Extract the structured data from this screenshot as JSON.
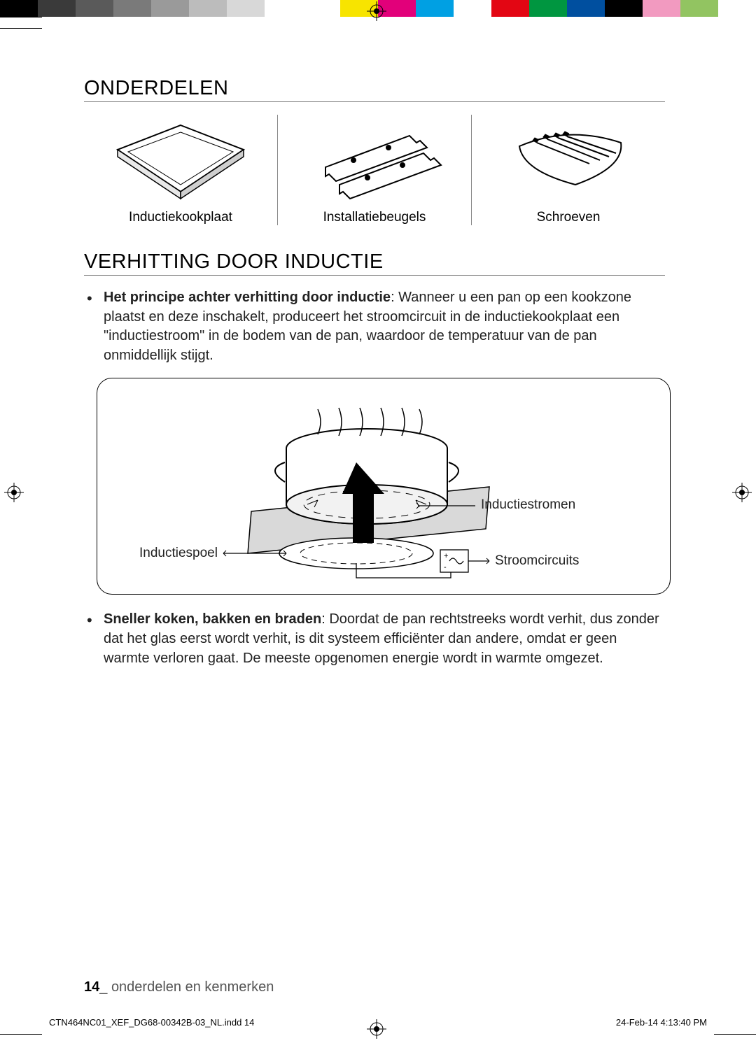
{
  "colorbar": [
    "#000000",
    "#3a3a3a",
    "#5a5a5a",
    "#7a7a7a",
    "#9a9a9a",
    "#bcbcbc",
    "#d8d8d8",
    "#ffffff",
    "#ffffff",
    "#f7e400",
    "#e2007a",
    "#00a0e3",
    "#ffffff",
    "#e30613",
    "#009640",
    "#004f9f",
    "#000000",
    "#f29ac0",
    "#92c461",
    "#ffffff"
  ],
  "sections": {
    "parts_title": "ONDERDELEN",
    "induction_title": "VERHITTING DOOR INDUCTIE"
  },
  "parts": [
    {
      "caption": "Inductiekookplaat"
    },
    {
      "caption": "Installatiebeugels"
    },
    {
      "caption": "Schroeven"
    }
  ],
  "bullets": {
    "b1_bold": "Het principe achter verhitting door inductie",
    "b1_rest": ": Wanneer u een pan op een kookzone plaatst en deze inschakelt, produceert het stroomcircuit in de inductiekookplaat een \"inductiestroom\" in de bodem van de pan, waardoor de temperatuur van de pan onmiddellijk stijgt.",
    "b2_bold": "Sneller koken, bakken en braden",
    "b2_rest": ": Doordat de pan rechtstreeks wordt verhit, dus zonder dat het glas eerst wordt verhit, is dit systeem efficiënter dan andere, omdat er geen warmte verloren gaat. De meeste opgenomen energie wordt in warmte omgezet."
  },
  "diagram_labels": {
    "coil": "Inductiespoel",
    "currents": "Inductiestromen",
    "circuits": "Stroomcircuits"
  },
  "footer": {
    "page_num": "14",
    "sep": "_ ",
    "text": "onderdelen en kenmerken"
  },
  "slug": {
    "file": "CTN464NC01_XEF_DG68-00342B-03_NL.indd   14",
    "date": "24-Feb-14   4:13:40 PM"
  }
}
